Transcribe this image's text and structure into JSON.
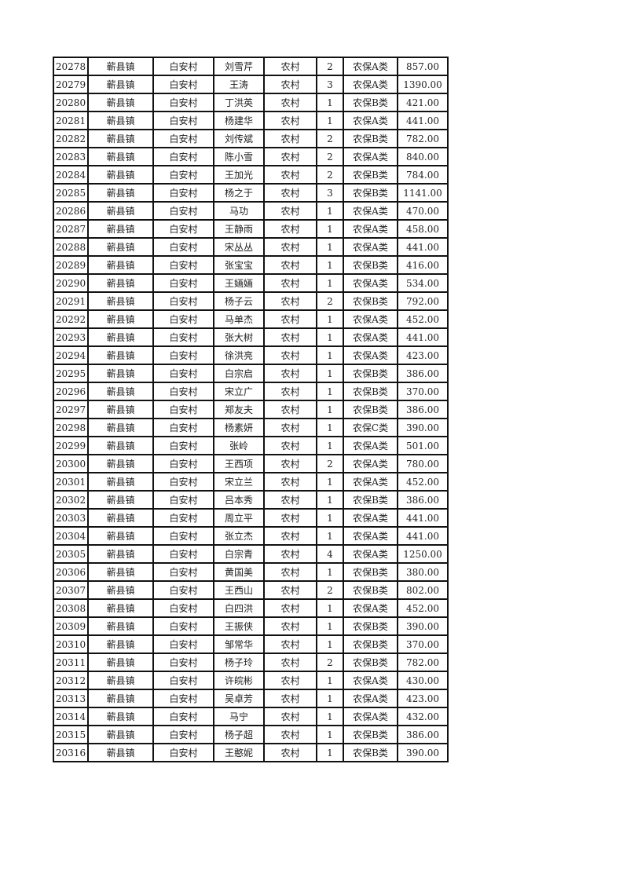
{
  "table": {
    "rows": [
      [
        "20278",
        "蕲县镇",
        "白安村",
        "刘雪芹",
        "农村",
        "2",
        "农保A类",
        "857.00"
      ],
      [
        "20279",
        "蕲县镇",
        "白安村",
        "王涛",
        "农村",
        "3",
        "农保A类",
        "1390.00"
      ],
      [
        "20280",
        "蕲县镇",
        "白安村",
        "丁洪英",
        "农村",
        "1",
        "农保B类",
        "421.00"
      ],
      [
        "20281",
        "蕲县镇",
        "白安村",
        "杨建华",
        "农村",
        "1",
        "农保A类",
        "441.00"
      ],
      [
        "20282",
        "蕲县镇",
        "白安村",
        "刘传斌",
        "农村",
        "2",
        "农保B类",
        "782.00"
      ],
      [
        "20283",
        "蕲县镇",
        "白安村",
        "陈小雪",
        "农村",
        "2",
        "农保A类",
        "840.00"
      ],
      [
        "20284",
        "蕲县镇",
        "白安村",
        "王加光",
        "农村",
        "2",
        "农保B类",
        "784.00"
      ],
      [
        "20285",
        "蕲县镇",
        "白安村",
        "杨之于",
        "农村",
        "3",
        "农保B类",
        "1141.00"
      ],
      [
        "20286",
        "蕲县镇",
        "白安村",
        "马功",
        "农村",
        "1",
        "农保A类",
        "470.00"
      ],
      [
        "20287",
        "蕲县镇",
        "白安村",
        "王静雨",
        "农村",
        "1",
        "农保A类",
        "458.00"
      ],
      [
        "20288",
        "蕲县镇",
        "白安村",
        "宋丛丛",
        "农村",
        "1",
        "农保A类",
        "441.00"
      ],
      [
        "20289",
        "蕲县镇",
        "白安村",
        "张宝宝",
        "农村",
        "1",
        "农保B类",
        "416.00"
      ],
      [
        "20290",
        "蕲县镇",
        "白安村",
        "王婳婳",
        "农村",
        "1",
        "农保A类",
        "534.00"
      ],
      [
        "20291",
        "蕲县镇",
        "白安村",
        "杨子云",
        "农村",
        "2",
        "农保B类",
        "792.00"
      ],
      [
        "20292",
        "蕲县镇",
        "白安村",
        "马单杰",
        "农村",
        "1",
        "农保A类",
        "452.00"
      ],
      [
        "20293",
        "蕲县镇",
        "白安村",
        "张大树",
        "农村",
        "1",
        "农保A类",
        "441.00"
      ],
      [
        "20294",
        "蕲县镇",
        "白安村",
        "徐洪亮",
        "农村",
        "1",
        "农保A类",
        "423.00"
      ],
      [
        "20295",
        "蕲县镇",
        "白安村",
        "白宗启",
        "农村",
        "1",
        "农保B类",
        "386.00"
      ],
      [
        "20296",
        "蕲县镇",
        "白安村",
        "宋立广",
        "农村",
        "1",
        "农保B类",
        "370.00"
      ],
      [
        "20297",
        "蕲县镇",
        "白安村",
        "郑友夫",
        "农村",
        "1",
        "农保B类",
        "386.00"
      ],
      [
        "20298",
        "蕲县镇",
        "白安村",
        "杨素妍",
        "农村",
        "1",
        "农保C类",
        "390.00"
      ],
      [
        "20299",
        "蕲县镇",
        "白安村",
        "张岭",
        "农村",
        "1",
        "农保A类",
        "501.00"
      ],
      [
        "20300",
        "蕲县镇",
        "白安村",
        "王西项",
        "农村",
        "2",
        "农保A类",
        "780.00"
      ],
      [
        "20301",
        "蕲县镇",
        "白安村",
        "宋立兰",
        "农村",
        "1",
        "农保A类",
        "452.00"
      ],
      [
        "20302",
        "蕲县镇",
        "白安村",
        "吕本秀",
        "农村",
        "1",
        "农保B类",
        "386.00"
      ],
      [
        "20303",
        "蕲县镇",
        "白安村",
        "周立平",
        "农村",
        "1",
        "农保A类",
        "441.00"
      ],
      [
        "20304",
        "蕲县镇",
        "白安村",
        "张立杰",
        "农村",
        "1",
        "农保A类",
        "441.00"
      ],
      [
        "20305",
        "蕲县镇",
        "白安村",
        "白宗青",
        "农村",
        "4",
        "农保A类",
        "1250.00"
      ],
      [
        "20306",
        "蕲县镇",
        "白安村",
        "黄国美",
        "农村",
        "1",
        "农保B类",
        "380.00"
      ],
      [
        "20307",
        "蕲县镇",
        "白安村",
        "王西山",
        "农村",
        "2",
        "农保B类",
        "802.00"
      ],
      [
        "20308",
        "蕲县镇",
        "白安村",
        "白四洪",
        "农村",
        "1",
        "农保A类",
        "452.00"
      ],
      [
        "20309",
        "蕲县镇",
        "白安村",
        "王振侠",
        "农村",
        "1",
        "农保B类",
        "390.00"
      ],
      [
        "20310",
        "蕲县镇",
        "白安村",
        "邹常华",
        "农村",
        "1",
        "农保B类",
        "370.00"
      ],
      [
        "20311",
        "蕲县镇",
        "白安村",
        "杨子玲",
        "农村",
        "2",
        "农保B类",
        "782.00"
      ],
      [
        "20312",
        "蕲县镇",
        "白安村",
        "许皖彬",
        "农村",
        "1",
        "农保A类",
        "430.00"
      ],
      [
        "20313",
        "蕲县镇",
        "白安村",
        "吴卓芳",
        "农村",
        "1",
        "农保A类",
        "423.00"
      ],
      [
        "20314",
        "蕲县镇",
        "白安村",
        "马宁",
        "农村",
        "1",
        "农保A类",
        "432.00"
      ],
      [
        "20315",
        "蕲县镇",
        "白安村",
        "杨子超",
        "农村",
        "1",
        "农保B类",
        "386.00"
      ],
      [
        "20316",
        "蕲县镇",
        "白安村",
        "王憨妮",
        "农村",
        "1",
        "农保B类",
        "390.00"
      ]
    ]
  }
}
